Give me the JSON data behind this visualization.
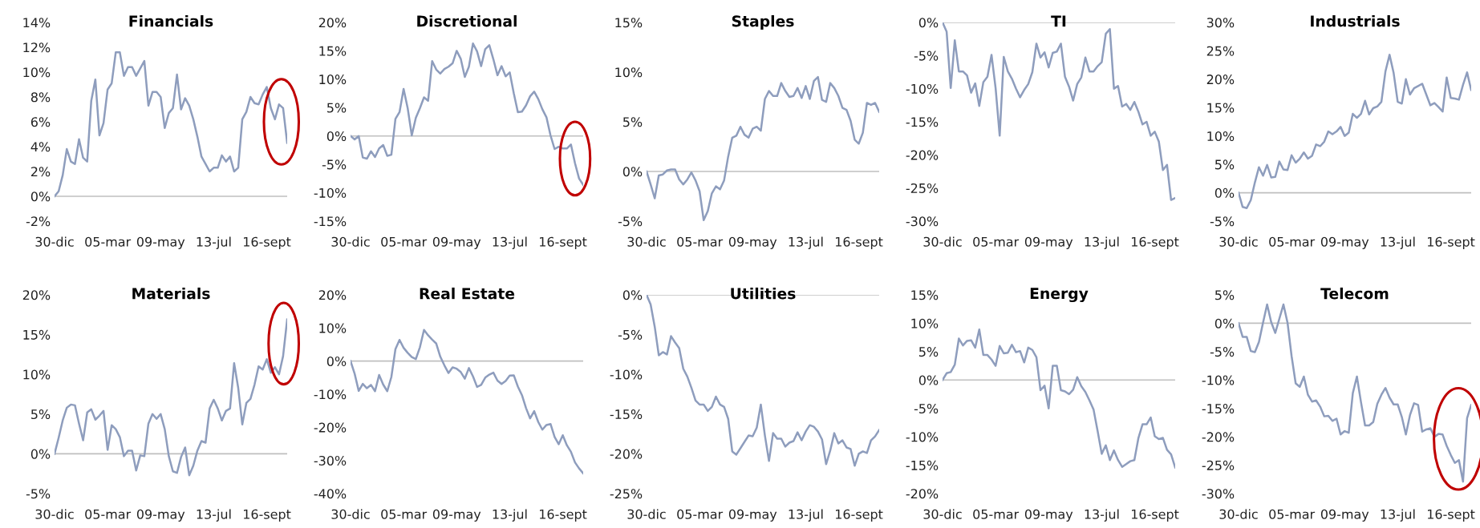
{
  "chart_data": [
    {
      "type": "line",
      "title": "Financials",
      "categories": [
        "30-dic",
        null,
        null,
        null,
        null,
        null,
        null,
        null,
        null,
        null,
        null,
        null,
        null,
        "05-mar",
        null,
        null,
        null,
        null,
        null,
        null,
        null,
        null,
        null,
        null,
        null,
        null,
        "09-may",
        null,
        null,
        null,
        null,
        null,
        null,
        null,
        null,
        null,
        null,
        null,
        null,
        "13-jul",
        null,
        null,
        null,
        null,
        null,
        null,
        null,
        null,
        null,
        null,
        null,
        null,
        "16-sept",
        null,
        null,
        null,
        null,
        null
      ],
      "ylim": [
        -2,
        14
      ],
      "yticks": [
        {
          "value": -2,
          "label": "-2%"
        },
        {
          "value": 0,
          "label": "0%"
        },
        {
          "value": 2,
          "label": "2%"
        },
        {
          "value": 4,
          "label": "4%"
        },
        {
          "value": 6,
          "label": "6%"
        },
        {
          "value": 8,
          "label": "8%"
        },
        {
          "value": 10,
          "label": "10%"
        },
        {
          "value": 12,
          "label": "12%"
        },
        {
          "value": 14,
          "label": "14%"
        }
      ],
      "ref_lines": [
        {
          "axis": "y",
          "value": 0,
          "color": "#bfbfbf"
        }
      ],
      "series": [
        {
          "color": "#8e9dbd",
          "values": [
            0,
            0.4,
            1.7,
            3.8,
            2.8,
            2.6,
            4.6,
            3.1,
            2.8,
            7.7,
            9.4,
            4.9,
            5.9,
            8.6,
            9.1,
            11.6,
            11.6,
            9.7,
            10.4,
            10.4,
            9.7,
            10.3,
            10.9,
            7.3,
            8.4,
            8.4,
            8.0,
            5.5,
            6.7,
            7.1,
            9.8,
            7.0,
            7.9,
            7.3,
            6.2,
            4.8,
            3.2,
            2.6,
            2.0,
            2.3,
            2.3,
            3.3,
            2.8,
            3.2,
            2.0,
            2.3,
            6.2,
            6.8,
            8.0,
            7.5,
            7.4,
            8.2,
            8.8,
            7.1,
            6.2,
            7.4,
            7.1,
            4.3
          ]
        }
      ]
    },
    {
      "type": "line",
      "title": "Discretional",
      "categories": [
        "30-dic",
        null,
        null,
        null,
        null,
        null,
        null,
        null,
        null,
        null,
        null,
        null,
        null,
        "05-mar",
        null,
        null,
        null,
        null,
        null,
        null,
        null,
        null,
        null,
        null,
        null,
        null,
        "09-may",
        null,
        null,
        null,
        null,
        null,
        null,
        null,
        null,
        null,
        null,
        null,
        null,
        "13-jul",
        null,
        null,
        null,
        null,
        null,
        null,
        null,
        null,
        null,
        null,
        null,
        null,
        "16-sept",
        null,
        null,
        null,
        null,
        null
      ],
      "ylim": [
        -15,
        20
      ],
      "yticks": [
        {
          "value": -15,
          "label": "-15%"
        },
        {
          "value": -10,
          "label": "-10%"
        },
        {
          "value": -5,
          "label": "-5%"
        },
        {
          "value": 0,
          "label": "0%"
        },
        {
          "value": 5,
          "label": "5%"
        },
        {
          "value": 10,
          "label": "10%"
        },
        {
          "value": 15,
          "label": "15%"
        },
        {
          "value": 20,
          "label": "20%"
        }
      ],
      "ref_lines": [
        {
          "axis": "y",
          "value": 0,
          "color": "#bfbfbf"
        }
      ],
      "series": [
        {
          "color": "#8e9dbd",
          "values": [
            0,
            -0.6,
            0,
            -3.8,
            -4.0,
            -2.7,
            -3.7,
            -2.2,
            -1.6,
            -3.5,
            -3.3,
            3.0,
            4.2,
            8.3,
            4.9,
            0.1,
            3.2,
            4.9,
            6.8,
            6.2,
            13.2,
            11.7,
            11.0,
            11.8,
            12.2,
            12.8,
            15.0,
            13.6,
            10.4,
            12.2,
            16.3,
            14.9,
            12.3,
            15.3,
            16.0,
            13.5,
            10.7,
            12.3,
            10.5,
            11.2,
            7.5,
            4.2,
            4.3,
            5.4,
            7.0,
            7.8,
            6.5,
            4.7,
            3.3,
            0.1,
            -2.3,
            -1.9,
            -2.2,
            -2.2,
            -1.5,
            -4.8,
            -7.5,
            -8.6
          ]
        }
      ]
    },
    {
      "type": "line",
      "title": "Staples",
      "categories": [
        "30-dic",
        null,
        null,
        null,
        null,
        null,
        null,
        null,
        null,
        null,
        null,
        null,
        null,
        "05-mar",
        null,
        null,
        null,
        null,
        null,
        null,
        null,
        null,
        null,
        null,
        null,
        null,
        "09-may",
        null,
        null,
        null,
        null,
        null,
        null,
        null,
        null,
        null,
        null,
        null,
        null,
        "13-jul",
        null,
        null,
        null,
        null,
        null,
        null,
        null,
        null,
        null,
        null,
        null,
        null,
        "16-sept",
        null,
        null,
        null,
        null,
        null
      ],
      "ylim": [
        -5,
        15
      ],
      "yticks": [
        {
          "value": -5,
          "label": "-5%"
        },
        {
          "value": 0,
          "label": "0%"
        },
        {
          "value": 5,
          "label": "5%"
        },
        {
          "value": 10,
          "label": "10%"
        },
        {
          "value": 15,
          "label": "15%"
        }
      ],
      "ref_lines": [
        {
          "axis": "y",
          "value": 0,
          "color": "#bfbfbf"
        }
      ],
      "series": [
        {
          "color": "#8e9dbd",
          "values": [
            0,
            -1.3,
            -2.7,
            -0.4,
            -0.3,
            0.1,
            0.2,
            0.2,
            -0.8,
            -1.3,
            -0.8,
            -0.1,
            -0.9,
            -2.0,
            -4.9,
            -4.0,
            -2.2,
            -1.5,
            -1.8,
            -0.9,
            1.5,
            3.4,
            3.6,
            4.5,
            3.7,
            3.4,
            4.3,
            4.5,
            4.1,
            7.3,
            8.1,
            7.6,
            7.6,
            8.9,
            8.1,
            7.5,
            7.6,
            8.4,
            7.4,
            8.6,
            7.3,
            9.1,
            9.5,
            7.2,
            7.0,
            8.9,
            8.4,
            7.6,
            6.4,
            6.2,
            5.1,
            3.2,
            2.8,
            3.9,
            6.9,
            6.7,
            6.9,
            6.0
          ]
        }
      ]
    },
    {
      "type": "line",
      "title": "TI",
      "categories": [
        "30-dic",
        null,
        null,
        null,
        null,
        null,
        null,
        null,
        null,
        null,
        null,
        null,
        null,
        "05-mar",
        null,
        null,
        null,
        null,
        null,
        null,
        null,
        null,
        null,
        null,
        null,
        null,
        "09-may",
        null,
        null,
        null,
        null,
        null,
        null,
        null,
        null,
        null,
        null,
        null,
        null,
        "13-jul",
        null,
        null,
        null,
        null,
        null,
        null,
        null,
        null,
        null,
        null,
        null,
        null,
        "16-sept",
        null,
        null,
        null,
        null,
        null
      ],
      "ylim": [
        -30,
        0
      ],
      "yticks": [
        {
          "value": -30,
          "label": "-30%"
        },
        {
          "value": -25,
          "label": "-25%"
        },
        {
          "value": -20,
          "label": "-20%"
        },
        {
          "value": -15,
          "label": "-15%"
        },
        {
          "value": -10,
          "label": "-10%"
        },
        {
          "value": -5,
          "label": "-5%"
        },
        {
          "value": 0,
          "label": "0%"
        }
      ],
      "ref_lines": [
        {
          "axis": "y",
          "value": 0,
          "color": "#bfbfbf"
        }
      ],
      "series": [
        {
          "color": "#8e9dbd",
          "values": [
            0,
            -1.4,
            -9.9,
            -2.7,
            -7.4,
            -7.4,
            -8.0,
            -10.6,
            -9.2,
            -12.6,
            -9.0,
            -8.2,
            -4.9,
            -9.9,
            -17.1,
            -5.2,
            -7.4,
            -8.5,
            -10.0,
            -11.3,
            -10.2,
            -9.3,
            -7.5,
            -3.2,
            -5.3,
            -4.5,
            -6.8,
            -4.6,
            -4.4,
            -3.2,
            -8.2,
            -9.7,
            -11.8,
            -9.3,
            -8.3,
            -5.3,
            -7.4,
            -7.4,
            -6.6,
            -6.0,
            -1.7,
            -1.0,
            -10.0,
            -9.6,
            -12.7,
            -12.3,
            -13.2,
            -12.0,
            -13.5,
            -15.4,
            -15.0,
            -17.1,
            -16.5,
            -18.0,
            -22.3,
            -21.5,
            -26.8,
            -26.5
          ]
        }
      ]
    },
    {
      "type": "line",
      "title": "Industrials",
      "categories": [
        "30-dic",
        null,
        null,
        null,
        null,
        null,
        null,
        null,
        null,
        null,
        null,
        null,
        null,
        "05-mar",
        null,
        null,
        null,
        null,
        null,
        null,
        null,
        null,
        null,
        null,
        null,
        null,
        "09-may",
        null,
        null,
        null,
        null,
        null,
        null,
        null,
        null,
        null,
        null,
        null,
        null,
        "13-jul",
        null,
        null,
        null,
        null,
        null,
        null,
        null,
        null,
        null,
        null,
        null,
        null,
        "16-sept",
        null,
        null,
        null,
        null,
        null
      ],
      "ylim": [
        -5,
        30
      ],
      "yticks": [
        {
          "value": -5,
          "label": "-5%"
        },
        {
          "value": 0,
          "label": "0%"
        },
        {
          "value": 5,
          "label": "5%"
        },
        {
          "value": 10,
          "label": "10%"
        },
        {
          "value": 15,
          "label": "15%"
        },
        {
          "value": 20,
          "label": "20%"
        },
        {
          "value": 25,
          "label": "25%"
        },
        {
          "value": 30,
          "label": "30%"
        }
      ],
      "ref_lines": [
        {
          "axis": "y",
          "value": 0,
          "color": "#bfbfbf"
        }
      ],
      "series": [
        {
          "color": "#8e9dbd",
          "values": [
            0,
            -2.5,
            -2.7,
            -1.3,
            1.8,
            4.5,
            3.0,
            4.9,
            2.7,
            2.8,
            5.5,
            4.1,
            4.0,
            6.6,
            5.3,
            6.0,
            7.1,
            6.0,
            6.5,
            8.5,
            8.2,
            9.0,
            10.8,
            10.3,
            10.8,
            11.6,
            10.0,
            10.6,
            13.9,
            13.2,
            13.9,
            16.2,
            13.8,
            14.9,
            15.2,
            16.0,
            21.4,
            24.3,
            21.1,
            16.0,
            15.7,
            20.0,
            17.3,
            18.4,
            18.8,
            19.2,
            17.3,
            15.4,
            15.8,
            15.1,
            14.3,
            20.3,
            16.7,
            16.6,
            16.4,
            19.0,
            21.2,
            18.1
          ]
        }
      ]
    },
    {
      "type": "line",
      "title": "Materials",
      "categories": [
        "30-dic",
        null,
        null,
        null,
        null,
        null,
        null,
        null,
        null,
        null,
        null,
        null,
        null,
        "05-mar",
        null,
        null,
        null,
        null,
        null,
        null,
        null,
        null,
        null,
        null,
        null,
        null,
        "09-may",
        null,
        null,
        null,
        null,
        null,
        null,
        null,
        null,
        null,
        null,
        null,
        null,
        "13-jul",
        null,
        null,
        null,
        null,
        null,
        null,
        null,
        null,
        null,
        null,
        null,
        null,
        "16-sept",
        null,
        null,
        null,
        null,
        null
      ],
      "ylim": [
        -5,
        20
      ],
      "yticks": [
        {
          "value": -5,
          "label": "-5%"
        },
        {
          "value": 0,
          "label": "0%"
        },
        {
          "value": 5,
          "label": "5%"
        },
        {
          "value": 10,
          "label": "10%"
        },
        {
          "value": 15,
          "label": "15%"
        },
        {
          "value": 20,
          "label": "20%"
        }
      ],
      "ref_lines": [
        {
          "axis": "y",
          "value": 0,
          "color": "#bfbfbf"
        }
      ],
      "series": [
        {
          "color": "#8e9dbd",
          "values": [
            0,
            2.0,
            4.2,
            5.8,
            6.2,
            6.1,
            3.8,
            1.7,
            5.2,
            5.6,
            4.3,
            4.8,
            5.4,
            0.5,
            3.6,
            3.1,
            2.1,
            -0.3,
            0.4,
            0.4,
            -2.1,
            -0.2,
            -0.3,
            3.8,
            5.0,
            4.4,
            5.0,
            3.1,
            -0.3,
            -2.2,
            -2.4,
            -0.4,
            0.8,
            -2.7,
            -1.5,
            0.4,
            1.6,
            1.4,
            5.7,
            6.8,
            5.7,
            4.2,
            5.4,
            5.7,
            11.4,
            8.3,
            3.7,
            6.4,
            6.9,
            8.7,
            11.0,
            10.6,
            11.9,
            10.2,
            10.9,
            10.0,
            12.3,
            16.9
          ]
        }
      ]
    },
    {
      "type": "line",
      "title": "Real Estate",
      "categories": [
        "30-dic",
        null,
        null,
        null,
        null,
        null,
        null,
        null,
        null,
        null,
        null,
        null,
        null,
        "05-mar",
        null,
        null,
        null,
        null,
        null,
        null,
        null,
        null,
        null,
        null,
        null,
        null,
        "09-may",
        null,
        null,
        null,
        null,
        null,
        null,
        null,
        null,
        null,
        null,
        null,
        null,
        "13-jul",
        null,
        null,
        null,
        null,
        null,
        null,
        null,
        null,
        null,
        null,
        null,
        null,
        "16-sept",
        null,
        null,
        null,
        null,
        null
      ],
      "ylim": [
        -40,
        20
      ],
      "yticks": [
        {
          "value": -40,
          "label": "-40%"
        },
        {
          "value": -30,
          "label": "-30%"
        },
        {
          "value": -20,
          "label": "-20%"
        },
        {
          "value": -10,
          "label": "-10%"
        },
        {
          "value": 0,
          "label": "0%"
        },
        {
          "value": 10,
          "label": "10%"
        },
        {
          "value": 20,
          "label": "20%"
        }
      ],
      "ref_lines": [
        {
          "axis": "y",
          "value": 0,
          "color": "#bfbfbf"
        }
      ],
      "series": [
        {
          "color": "#8e9dbd",
          "values": [
            0,
            -3.8,
            -9.0,
            -6.9,
            -8.2,
            -7.2,
            -9.1,
            -4.2,
            -7.1,
            -9.1,
            -4.8,
            3.6,
            6.4,
            4.0,
            2.5,
            1.2,
            0.6,
            4.2,
            9.4,
            7.8,
            6.5,
            5.3,
            1.3,
            -1.3,
            -3.6,
            -1.9,
            -2.3,
            -3.3,
            -5.3,
            -2.1,
            -4.6,
            -7.8,
            -7.2,
            -5.0,
            -4.1,
            -3.5,
            -5.9,
            -6.9,
            -6.0,
            -4.4,
            -4.3,
            -7.7,
            -10.3,
            -14.2,
            -17.3,
            -15.1,
            -18.4,
            -20.7,
            -19.3,
            -19.0,
            -22.9,
            -25.1,
            -22.4,
            -25.4,
            -27.4,
            -30.6,
            -32.4,
            -33.9
          ]
        }
      ]
    },
    {
      "type": "line",
      "title": "Utilities",
      "categories": [
        "30-dic",
        null,
        null,
        null,
        null,
        null,
        null,
        null,
        null,
        null,
        null,
        null,
        null,
        "05-mar",
        null,
        null,
        null,
        null,
        null,
        null,
        null,
        null,
        null,
        null,
        null,
        null,
        "09-may",
        null,
        null,
        null,
        null,
        null,
        null,
        null,
        null,
        null,
        null,
        null,
        null,
        "13-jul",
        null,
        null,
        null,
        null,
        null,
        null,
        null,
        null,
        null,
        null,
        null,
        null,
        "16-sept",
        null,
        null,
        null,
        null,
        null
      ],
      "ylim": [
        -25,
        0
      ],
      "yticks": [
        {
          "value": -25,
          "label": "-25%"
        },
        {
          "value": -20,
          "label": "-20%"
        },
        {
          "value": -15,
          "label": "-15%"
        },
        {
          "value": -10,
          "label": "-10%"
        },
        {
          "value": -5,
          "label": "-5%"
        },
        {
          "value": 0,
          "label": "0%"
        }
      ],
      "ref_lines": [
        {
          "axis": "y",
          "value": 0,
          "color": "#bfbfbf"
        }
      ],
      "series": [
        {
          "color": "#8e9dbd",
          "values": [
            0,
            -1.2,
            -4.0,
            -7.6,
            -7.2,
            -7.5,
            -5.2,
            -6.0,
            -6.7,
            -9.3,
            -10.3,
            -11.7,
            -13.3,
            -13.8,
            -13.8,
            -14.6,
            -14.1,
            -12.8,
            -13.8,
            -14.1,
            -15.6,
            -19.7,
            -20.1,
            -19.3,
            -18.5,
            -17.7,
            -17.8,
            -16.7,
            -13.8,
            -17.7,
            -20.9,
            -17.4,
            -18.1,
            -18.1,
            -19.1,
            -18.6,
            -18.4,
            -17.3,
            -18.3,
            -17.2,
            -16.4,
            -16.6,
            -17.2,
            -18.2,
            -21.3,
            -19.6,
            -17.4,
            -18.7,
            -18.3,
            -19.2,
            -19.4,
            -21.5,
            -20.0,
            -19.7,
            -19.9,
            -18.3,
            -17.8,
            -17.0
          ]
        }
      ]
    },
    {
      "type": "line",
      "title": "Energy",
      "categories": [
        "30-dic",
        null,
        null,
        null,
        null,
        null,
        null,
        null,
        null,
        null,
        null,
        null,
        null,
        "05-mar",
        null,
        null,
        null,
        null,
        null,
        null,
        null,
        null,
        null,
        null,
        null,
        null,
        "09-may",
        null,
        null,
        null,
        null,
        null,
        null,
        null,
        null,
        null,
        null,
        null,
        null,
        "13-jul",
        null,
        null,
        null,
        null,
        null,
        null,
        null,
        null,
        null,
        null,
        null,
        null,
        "16-sept",
        null,
        null,
        null,
        null,
        null
      ],
      "ylim": [
        -20,
        15
      ],
      "yticks": [
        {
          "value": -20,
          "label": "-20%"
        },
        {
          "value": -15,
          "label": "-15%"
        },
        {
          "value": -10,
          "label": "-10%"
        },
        {
          "value": -5,
          "label": "-5%"
        },
        {
          "value": 0,
          "label": "0%"
        },
        {
          "value": 5,
          "label": "5%"
        },
        {
          "value": 10,
          "label": "10%"
        },
        {
          "value": 15,
          "label": "15%"
        }
      ],
      "ref_lines": [
        {
          "axis": "y",
          "value": 0,
          "color": "#bfbfbf"
        }
      ],
      "series": [
        {
          "color": "#8e9dbd",
          "values": [
            0,
            1.2,
            1.4,
            2.7,
            7.3,
            6.1,
            6.9,
            7.0,
            5.7,
            8.9,
            4.4,
            4.4,
            3.6,
            2.5,
            6.0,
            4.7,
            4.8,
            6.2,
            4.9,
            5.1,
            3.1,
            5.7,
            5.3,
            4.0,
            -1.8,
            -1.0,
            -5.0,
            2.5,
            2.5,
            -1.8,
            -2.0,
            -2.5,
            -1.7,
            0.5,
            -1.1,
            -2.1,
            -3.6,
            -5.2,
            -9.0,
            -13.0,
            -11.5,
            -14.1,
            -12.4,
            -14.1,
            -15.3,
            -14.8,
            -14.3,
            -14.1,
            -10.2,
            -7.8,
            -7.8,
            -6.6,
            -9.9,
            -10.4,
            -10.2,
            -12.3,
            -13.1,
            -15.4
          ]
        }
      ]
    },
    {
      "type": "line",
      "title": "Telecom",
      "categories": [
        "30-dic",
        null,
        null,
        null,
        null,
        null,
        null,
        null,
        null,
        null,
        null,
        null,
        null,
        "05-mar",
        null,
        null,
        null,
        null,
        null,
        null,
        null,
        null,
        null,
        null,
        null,
        null,
        "09-may",
        null,
        null,
        null,
        null,
        null,
        null,
        null,
        null,
        null,
        null,
        null,
        null,
        "13-jul",
        null,
        null,
        null,
        null,
        null,
        null,
        null,
        null,
        null,
        null,
        null,
        null,
        "16-sept",
        null,
        null,
        null,
        null,
        null
      ],
      "ylim": [
        -30,
        5
      ],
      "yticks": [
        {
          "value": -30,
          "label": "-30%"
        },
        {
          "value": -25,
          "label": "-25%"
        },
        {
          "value": -20,
          "label": "-20%"
        },
        {
          "value": -15,
          "label": "-15%"
        },
        {
          "value": -10,
          "label": "-10%"
        },
        {
          "value": -5,
          "label": "-5%"
        },
        {
          "value": 0,
          "label": "0%"
        },
        {
          "value": 5,
          "label": "5%"
        }
      ],
      "ref_lines": [
        {
          "axis": "y",
          "value": 0,
          "color": "#bfbfbf"
        }
      ],
      "series": [
        {
          "color": "#8e9dbd",
          "values": [
            0,
            -2.4,
            -2.4,
            -4.9,
            -5.1,
            -3.3,
            0.1,
            3.3,
            0.2,
            -1.7,
            0.8,
            3.3,
            0.1,
            -5.8,
            -10.6,
            -11.2,
            -9.4,
            -12.6,
            -13.8,
            -13.6,
            -14.7,
            -16.4,
            -16.3,
            -17.2,
            -16.8,
            -19.6,
            -19.0,
            -19.3,
            -12.3,
            -9.4,
            -13.9,
            -18.0,
            -18.0,
            -17.4,
            -14.2,
            -12.6,
            -11.4,
            -13.1,
            -14.3,
            -14.3,
            -16.5,
            -19.6,
            -16.2,
            -14.1,
            -14.4,
            -19.1,
            -18.7,
            -18.5,
            -20.0,
            -19.5,
            -19.6,
            -21.6,
            -23.2,
            -24.6,
            -24.1,
            -27.9,
            -16.7,
            -14.4
          ]
        }
      ]
    }
  ]
}
